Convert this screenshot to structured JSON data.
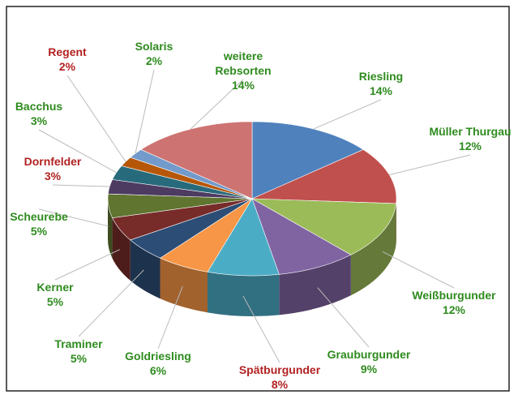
{
  "chart_data": {
    "type": "pie",
    "categories": [
      "Riesling",
      "Müller Thurgau",
      "Weißburgunder",
      "Grauburgunder",
      "Spätburgunder",
      "Goldriesling",
      "Traminer",
      "Kerner",
      "Scheurebe",
      "Dornfelder",
      "Bacchus",
      "Regent",
      "Solaris",
      "weitere Rebsorten"
    ],
    "values": [
      14,
      12,
      12,
      9,
      8,
      6,
      5,
      5,
      5,
      3,
      3,
      2,
      2,
      14
    ],
    "value_labels": [
      "14%",
      "12%",
      "12%",
      "9%",
      "8%",
      "6%",
      "5%",
      "5%",
      "5%",
      "3%",
      "3%",
      "2%",
      "2%",
      "14%"
    ],
    "colors": [
      "#4f81bd",
      "#c0504d",
      "#9bbb59",
      "#8064a2",
      "#4bacc6",
      "#f79646",
      "#2c4d75",
      "#772c2a",
      "#5f7530",
      "#4d3b62",
      "#276a7c",
      "#b65708",
      "#729aca",
      "#cd7371"
    ],
    "label_colors": [
      "#2e8b1e",
      "#2e8b1e",
      "#2e8b1e",
      "#2e8b1e",
      "#b22222",
      "#2e8b1e",
      "#2e8b1e",
      "#2e8b1e",
      "#2e8b1e",
      "#b22222",
      "#2e8b1e",
      "#b22222",
      "#2e8b1e",
      "#2e8b1e"
    ]
  }
}
